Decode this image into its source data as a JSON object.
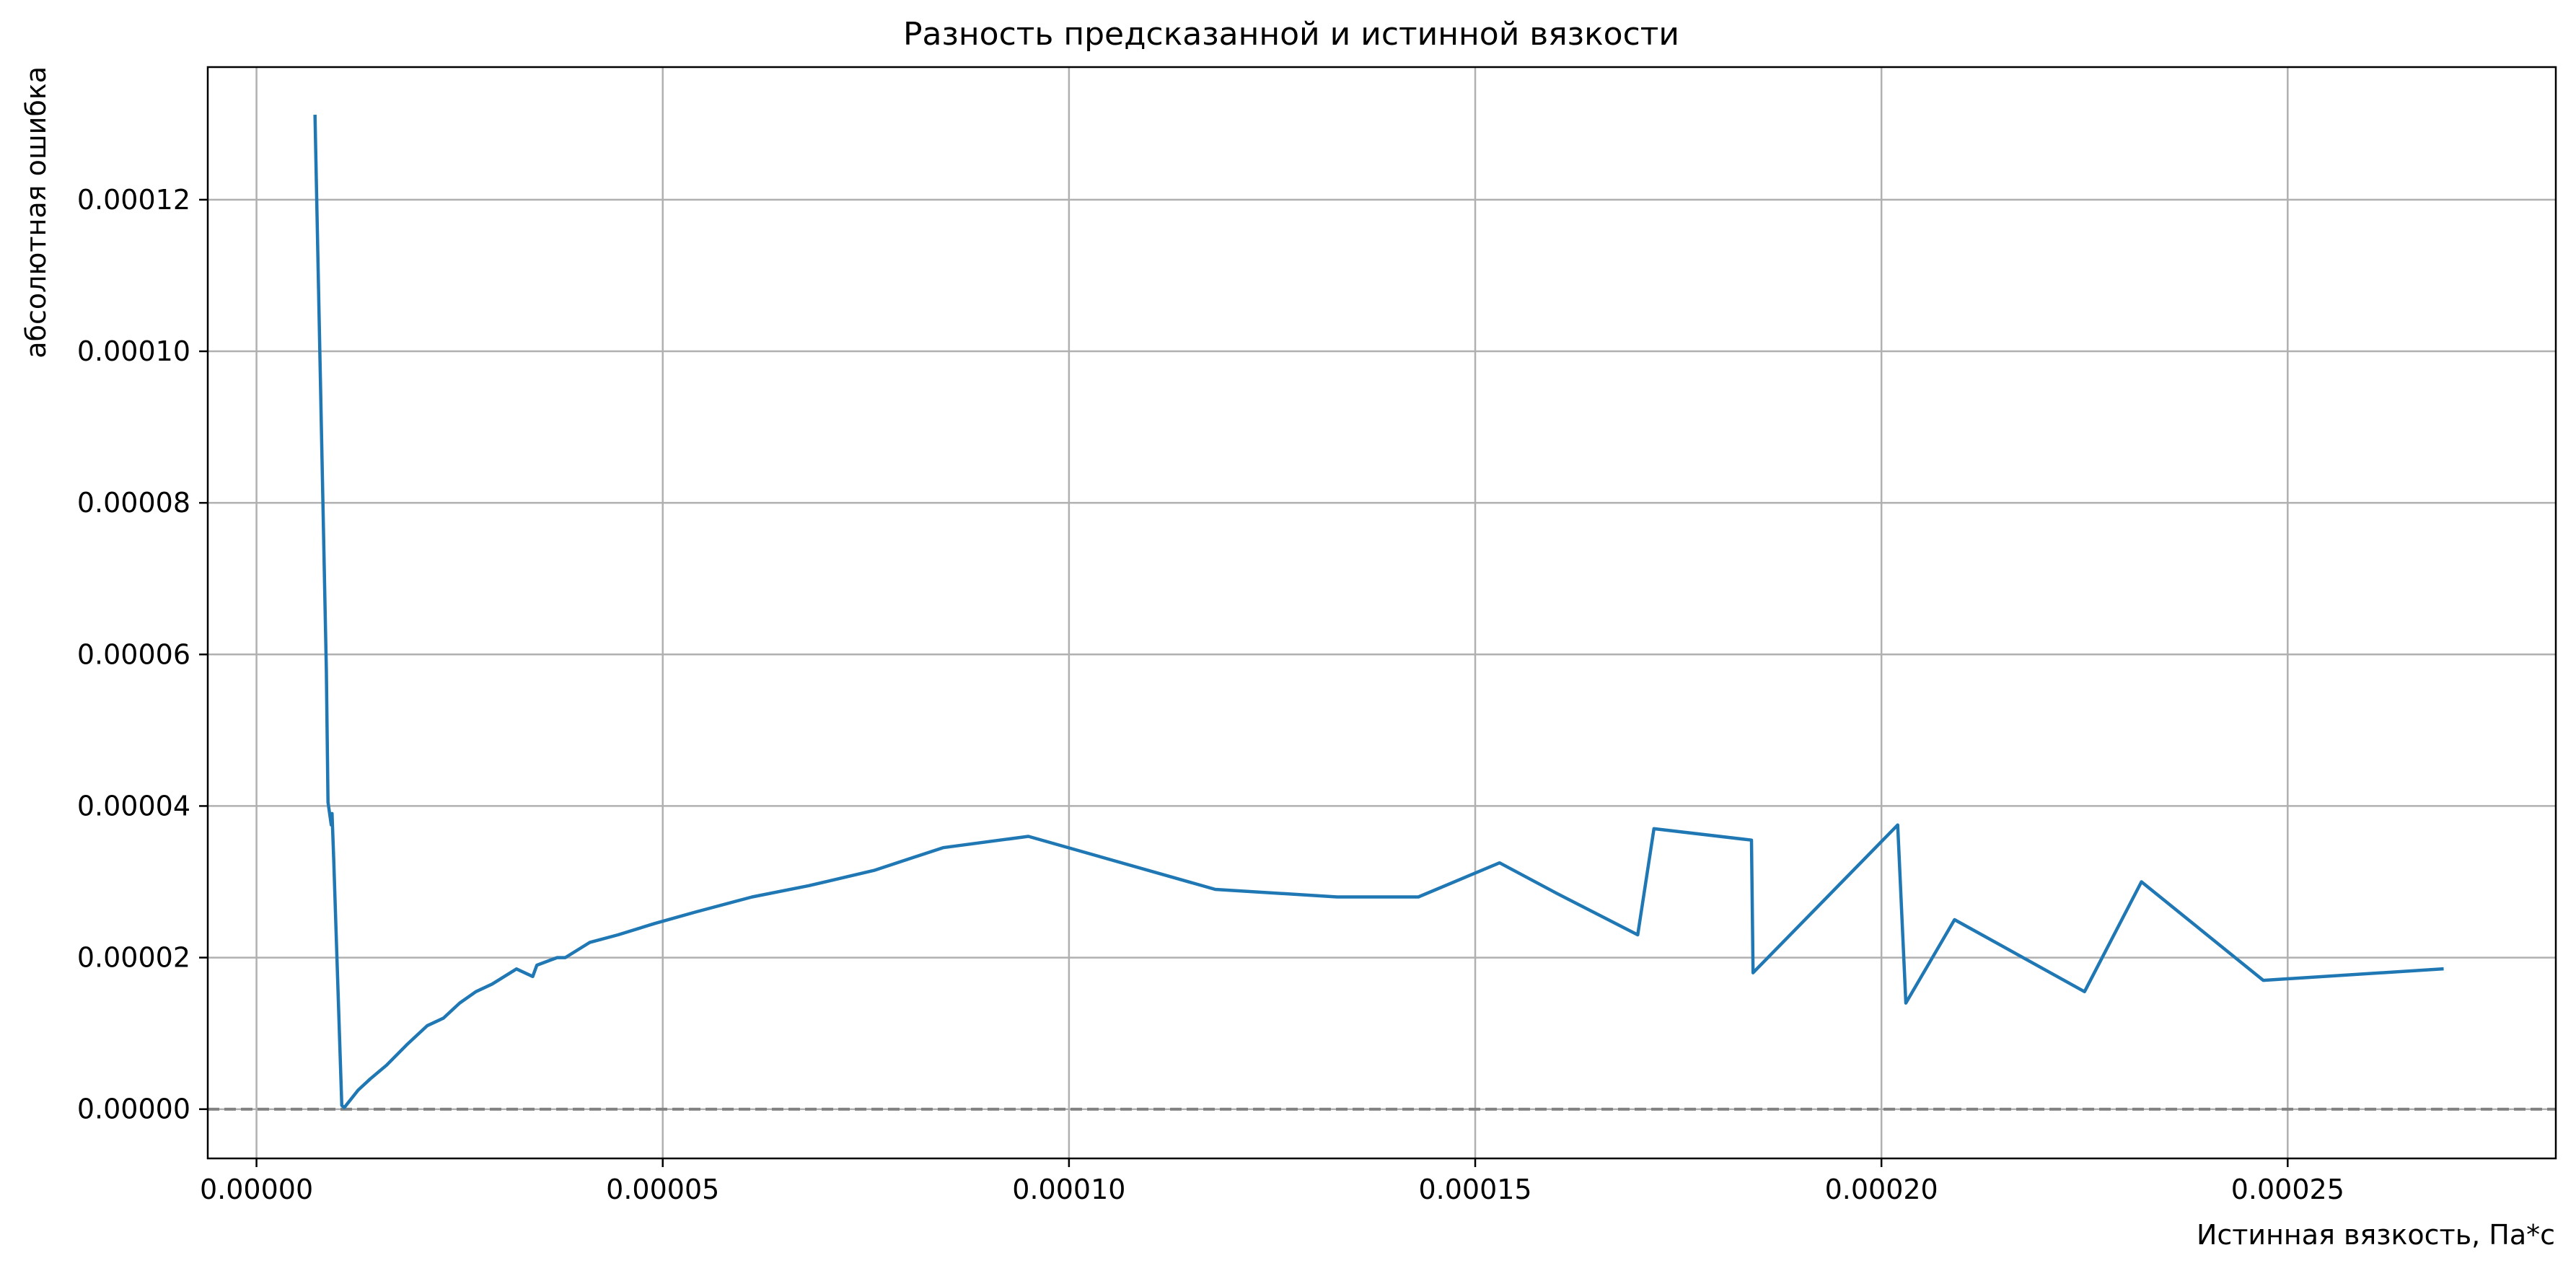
{
  "chart_data": {
    "type": "line",
    "title": "Разность предсказанной и истинной вязкости",
    "xlabel": "Истинная вязкость, Па*с",
    "ylabel": "абсолютная ошибка",
    "xlim": [
      -6e-06,
      0.000283
    ],
    "ylim": [
      -6.5e-06,
      0.0001375
    ],
    "xticks": [
      0.0,
      5e-05,
      0.0001,
      0.00015,
      0.0002,
      0.00025
    ],
    "xtick_labels": [
      "0.00000",
      "0.00005",
      "0.00010",
      "0.00015",
      "0.00020",
      "0.00025"
    ],
    "yticks": [
      0.0,
      2e-05,
      4e-05,
      6e-05,
      8e-05,
      0.0001,
      0.00012
    ],
    "ytick_labels": [
      "0.00000",
      "0.00002",
      "0.00004",
      "0.00006",
      "0.00008",
      "0.00010",
      "0.00012"
    ],
    "grid": true,
    "legend": "none",
    "reference_line": {
      "y": 0.0,
      "style": "dashed",
      "color": "#808080"
    },
    "series": [
      {
        "color": "#1f77b4",
        "x": [
          7.2e-06,
          8.5e-06,
          8.6e-06,
          8.8e-06,
          9.2e-06,
          9.3e-06,
          9.5e-06,
          1.05e-05,
          1.08e-05,
          1.25e-05,
          1.4e-05,
          1.6e-05,
          1.85e-05,
          2.1e-05,
          2.3e-05,
          2.4e-05,
          2.5e-05,
          2.7e-05,
          2.9e-05,
          3.2e-05,
          3.4e-05,
          3.45e-05,
          3.7e-05,
          3.8e-05,
          4.1e-05,
          4.45e-05,
          4.9e-05,
          5.4e-05,
          6.1e-05,
          6.8e-05,
          7.6e-05,
          8.45e-05,
          9.5e-05,
          0.000118,
          0.000133,
          0.000143,
          0.000153,
          0.00016,
          0.00017,
          0.000172,
          0.000184,
          0.0001842,
          0.000202,
          0.000203,
          0.000209,
          0.000225,
          0.000232,
          0.000247,
          0.000269
        ],
        "y": [
          0.000131,
          6.3e-05,
          5.8e-05,
          4.05e-05,
          3.75e-05,
          3.9e-05,
          3.3e-05,
          5e-07,
          2e-07,
          2.5e-06,
          4e-06,
          5.8e-06,
          8.5e-06,
          1.1e-05,
          1.2e-05,
          1.3e-05,
          1.4e-05,
          1.55e-05,
          1.65e-05,
          1.85e-05,
          1.75e-05,
          1.9e-05,
          2e-05,
          2e-05,
          2.2e-05,
          2.3e-05,
          2.45e-05,
          2.6e-05,
          2.8e-05,
          2.95e-05,
          3.15e-05,
          3.45e-05,
          3.6e-05,
          2.9e-05,
          2.8e-05,
          2.8e-05,
          3.25e-05,
          2.85e-05,
          2.3e-05,
          3.7e-05,
          3.55e-05,
          1.8e-05,
          3.75e-05,
          1.4e-05,
          2.5e-05,
          1.55e-05,
          3e-05,
          1.7e-05,
          1.85e-05
        ]
      }
    ]
  }
}
